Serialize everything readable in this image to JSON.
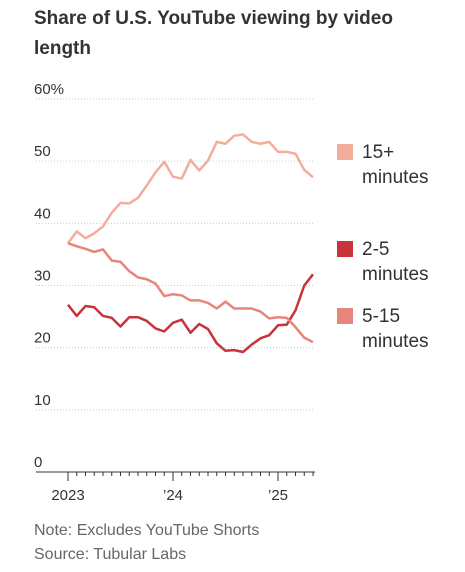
{
  "title": "Share of U.S. YouTube viewing by video length",
  "chart_data": {
    "type": "line",
    "categories": [
      "2023",
      null,
      null,
      null,
      null,
      null,
      null,
      null,
      null,
      null,
      null,
      null,
      "’24",
      null,
      null,
      null,
      null,
      null,
      null,
      null,
      null,
      null,
      null,
      null,
      "’25",
      null,
      null,
      null,
      null
    ],
    "series": [
      {
        "name": "15+ minutes",
        "color": "#f4ad9c",
        "values": [
          36.8,
          38.7,
          37.6,
          38.4,
          39.5,
          41.7,
          43.3,
          43.2,
          44.1,
          46.1,
          48.2,
          49.9,
          47.5,
          47.2,
          50.2,
          48.5,
          50.1,
          53.1,
          52.8,
          54.1,
          54.3,
          53.1,
          52.8,
          53.1,
          51.5,
          51.5,
          51.2,
          48.6,
          47.4
        ]
      },
      {
        "name": "2-5 minutes",
        "color": "#c8323a",
        "values": [
          26.9,
          25.1,
          26.7,
          26.5,
          25.1,
          24.8,
          23.4,
          24.9,
          24.9,
          24.3,
          23.1,
          22.6,
          24.0,
          24.5,
          22.4,
          23.8,
          23.0,
          20.7,
          19.5,
          19.6,
          19.3,
          20.5,
          21.5,
          22.0,
          23.6,
          23.7,
          26.0,
          30.0,
          31.8
        ]
      },
      {
        "name": "5-15 minutes",
        "color": "#e8857a",
        "values": [
          36.8,
          36.3,
          35.9,
          35.4,
          35.8,
          34.0,
          33.8,
          32.3,
          31.3,
          31.0,
          30.3,
          28.3,
          28.6,
          28.4,
          27.6,
          27.6,
          27.2,
          26.3,
          27.4,
          26.3,
          26.3,
          26.3,
          25.8,
          24.7,
          24.9,
          24.8,
          23.3,
          21.6,
          20.9
        ]
      }
    ],
    "ylim": [
      0,
      60
    ],
    "yticks": [
      0,
      10,
      20,
      30,
      40,
      50,
      {
        "value": 60,
        "label": "60%"
      }
    ],
    "grid": true
  },
  "note": "Note: Excludes YouTube Shorts",
  "source": "Source: Tubular Labs"
}
